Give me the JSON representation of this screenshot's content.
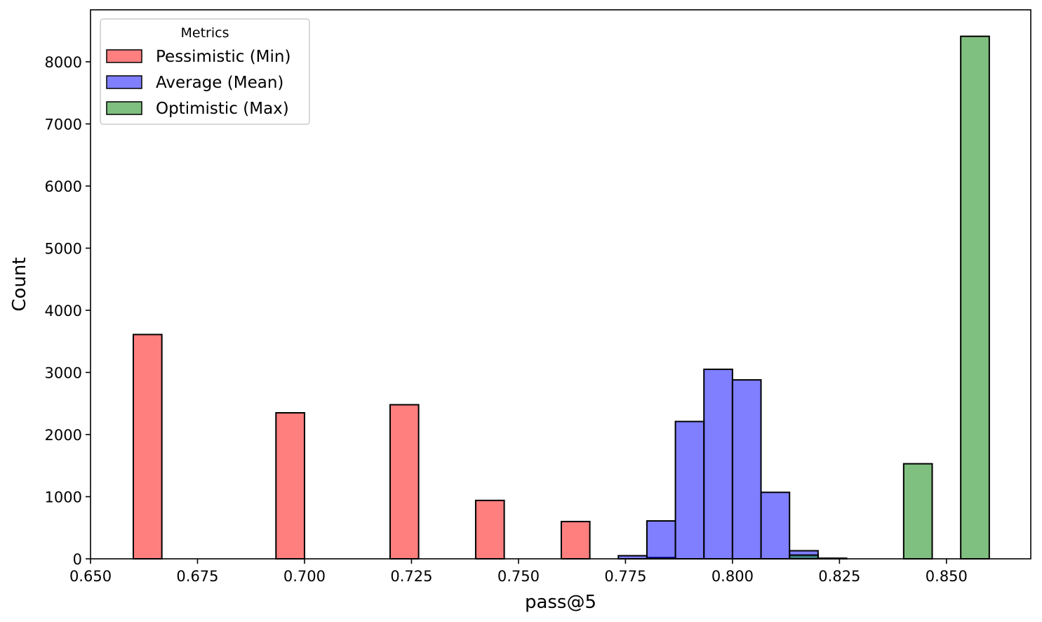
{
  "chart_data": {
    "type": "histogram",
    "xlabel": "pass@5",
    "ylabel": "Count",
    "xlim": [
      0.65,
      0.8697
    ],
    "ylim": [
      0,
      8836
    ],
    "bin_range": [
      0.66,
      0.86
    ],
    "bin_count": 30,
    "xticks": [
      "0.650",
      "0.675",
      "0.700",
      "0.725",
      "0.750",
      "0.775",
      "0.800",
      "0.825",
      "0.850"
    ],
    "yticks": [
      "0",
      "1000",
      "2000",
      "3000",
      "4000",
      "5000",
      "6000",
      "7000",
      "8000"
    ],
    "grid": false,
    "legend": {
      "title": "Metrics",
      "placement": "top-left"
    },
    "series": [
      {
        "name": "Pessimistic (Min)",
        "color": "#ff0000",
        "values": [
          3610,
          0,
          0,
          0,
          0,
          2350,
          0,
          0,
          0,
          2480,
          0,
          0,
          940,
          0,
          0,
          600,
          0,
          0,
          20,
          0,
          0,
          0,
          0,
          0,
          0,
          0,
          0,
          0,
          0,
          0
        ]
      },
      {
        "name": "Average (Mean)",
        "color": "#0000ff",
        "values": [
          0,
          0,
          0,
          0,
          0,
          0,
          0,
          0,
          0,
          0,
          0,
          0,
          0,
          0,
          0,
          0,
          0,
          50,
          610,
          2210,
          3050,
          2880,
          1070,
          130,
          10,
          0,
          0,
          0,
          0,
          0
        ]
      },
      {
        "name": "Optimistic (Max)",
        "color": "#008000",
        "values": [
          0,
          0,
          0,
          0,
          0,
          0,
          0,
          0,
          0,
          0,
          0,
          0,
          0,
          0,
          0,
          0,
          0,
          0,
          0,
          0,
          0,
          0,
          0,
          60,
          0,
          0,
          0,
          1530,
          0,
          8410
        ]
      }
    ]
  }
}
